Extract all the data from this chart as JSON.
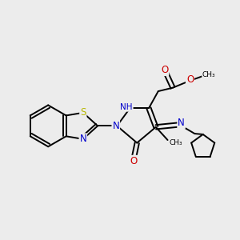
{
  "bg_color": "#ececec",
  "bond_color": "#000000",
  "N_color": "#0000cc",
  "O_color": "#cc0000",
  "S_color": "#b8b800",
  "line_width": 1.4,
  "figsize": [
    3.0,
    3.0
  ],
  "dpi": 100,
  "xlim": [
    0,
    10
  ],
  "ylim": [
    2.5,
    9.0
  ]
}
